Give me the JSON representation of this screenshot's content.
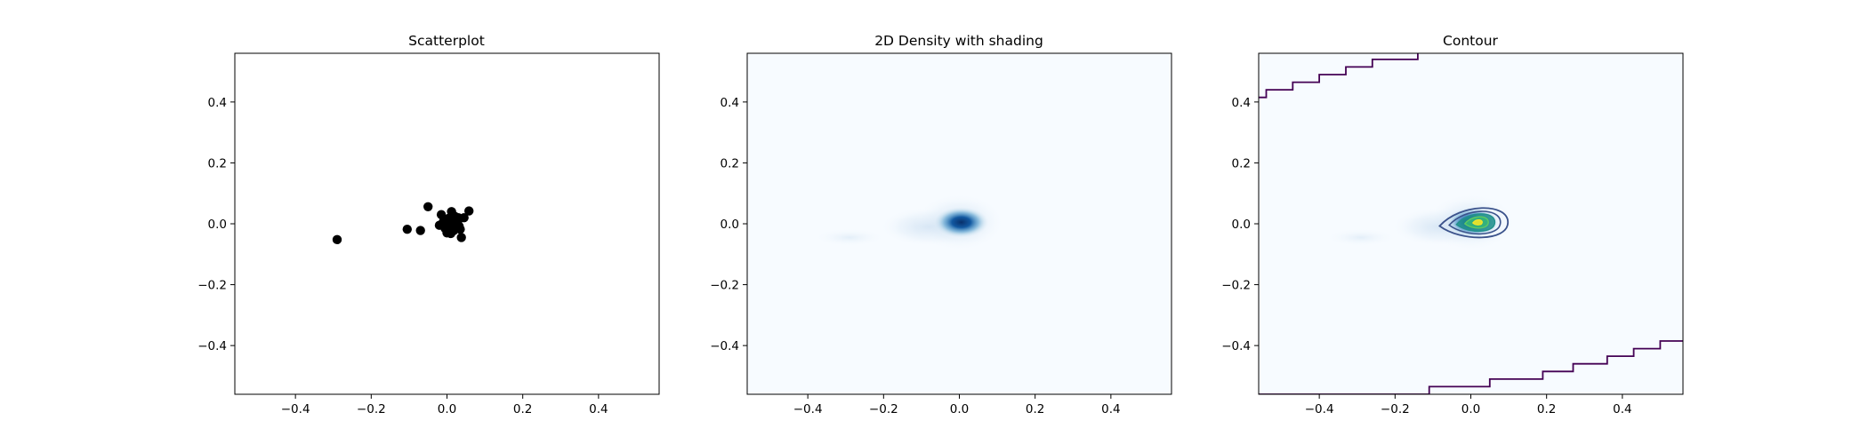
{
  "chart_data": [
    {
      "type": "scatter",
      "title": "Scatterplot",
      "xlim": [
        -0.56,
        0.56
      ],
      "ylim": [
        -0.56,
        0.56
      ],
      "xticks": [
        -0.4,
        -0.2,
        0.0,
        0.2,
        0.4
      ],
      "xtick_labels": [
        "−0.4",
        "−0.2",
        "0.0",
        "0.2",
        "0.4"
      ],
      "yticks": [
        -0.4,
        -0.2,
        0.0,
        0.2,
        0.4
      ],
      "ytick_labels": [
        "−0.4",
        "−0.2",
        "0.0",
        "0.2",
        "0.4"
      ],
      "marker_color": "#000000",
      "points": [
        [
          -0.29,
          -0.052
        ],
        [
          -0.105,
          -0.018
        ],
        [
          -0.07,
          -0.022
        ],
        [
          -0.05,
          0.056
        ],
        [
          -0.015,
          0.03
        ],
        [
          -0.01,
          0.005
        ],
        [
          -0.005,
          -0.015
        ],
        [
          0.0,
          -0.03
        ],
        [
          0.005,
          0.018
        ],
        [
          0.008,
          -0.005
        ],
        [
          0.012,
          0.04
        ],
        [
          0.015,
          0.0
        ],
        [
          0.018,
          -0.022
        ],
        [
          0.02,
          0.025
        ],
        [
          0.022,
          0.01
        ],
        [
          0.025,
          -0.012
        ],
        [
          0.028,
          0.005
        ],
        [
          0.03,
          0.02
        ],
        [
          0.032,
          -0.008
        ],
        [
          0.035,
          -0.018
        ],
        [
          0.038,
          -0.045
        ],
        [
          0.045,
          0.02
        ],
        [
          0.058,
          0.042
        ],
        [
          -0.02,
          -0.005
        ],
        [
          -0.008,
          0.012
        ],
        [
          0.01,
          -0.032
        ],
        [
          0.0,
          0.01
        ],
        [
          0.016,
          -0.015
        ]
      ]
    },
    {
      "type": "heatmap",
      "title": "2D Density with shading",
      "xlim": [
        -0.56,
        0.56
      ],
      "ylim": [
        -0.56,
        0.56
      ],
      "xticks": [
        -0.4,
        -0.2,
        0.0,
        0.2,
        0.4
      ],
      "xtick_labels": [
        "−0.4",
        "−0.2",
        "0.0",
        "0.2",
        "0.4"
      ],
      "yticks": [
        -0.4,
        -0.2,
        0.0,
        0.2,
        0.4
      ],
      "ytick_labels": [
        "−0.4",
        "−0.2",
        "0.0",
        "0.2",
        "0.4"
      ],
      "colormap": "Blues",
      "background_color": "#f7fbff",
      "peak_color": "#08306b",
      "peak": [
        0.005,
        0.005
      ]
    },
    {
      "type": "heatmap",
      "title": "Contour",
      "xlim": [
        -0.56,
        0.56
      ],
      "ylim": [
        -0.56,
        0.56
      ],
      "xticks": [
        -0.4,
        -0.2,
        0.0,
        0.2,
        0.4
      ],
      "xtick_labels": [
        "−0.4",
        "−0.2",
        "0.0",
        "0.2",
        "0.4"
      ],
      "yticks": [
        -0.4,
        -0.2,
        0.0,
        0.2,
        0.4
      ],
      "ytick_labels": [
        "−0.4",
        "−0.2",
        "0.0",
        "0.2",
        "0.4"
      ],
      "colormap": "Blues",
      "contour_colormap": "viridis",
      "contour_colors": [
        "#440154",
        "#3b528b",
        "#21918c",
        "#5ec962",
        "#fde725"
      ],
      "peak": [
        0.005,
        0.005
      ],
      "upper_step_contour": [
        [
          -0.56,
          0.415
        ],
        [
          -0.54,
          0.415
        ],
        [
          -0.54,
          0.44
        ],
        [
          -0.47,
          0.44
        ],
        [
          -0.47,
          0.465
        ],
        [
          -0.4,
          0.465
        ],
        [
          -0.4,
          0.49
        ],
        [
          -0.33,
          0.49
        ],
        [
          -0.33,
          0.515
        ],
        [
          -0.26,
          0.515
        ],
        [
          -0.26,
          0.54
        ],
        [
          -0.14,
          0.54
        ],
        [
          -0.14,
          0.56
        ]
      ],
      "lower_step_contour": [
        [
          -0.56,
          -0.56
        ],
        [
          -0.11,
          -0.56
        ],
        [
          -0.11,
          -0.535
        ],
        [
          0.05,
          -0.535
        ],
        [
          0.05,
          -0.51
        ],
        [
          0.19,
          -0.51
        ],
        [
          0.19,
          -0.485
        ],
        [
          0.27,
          -0.485
        ],
        [
          0.27,
          -0.46
        ],
        [
          0.36,
          -0.46
        ],
        [
          0.36,
          -0.435
        ],
        [
          0.43,
          -0.435
        ],
        [
          0.43,
          -0.41
        ],
        [
          0.5,
          -0.41
        ],
        [
          0.5,
          -0.385
        ],
        [
          0.56,
          -0.385
        ]
      ]
    }
  ]
}
